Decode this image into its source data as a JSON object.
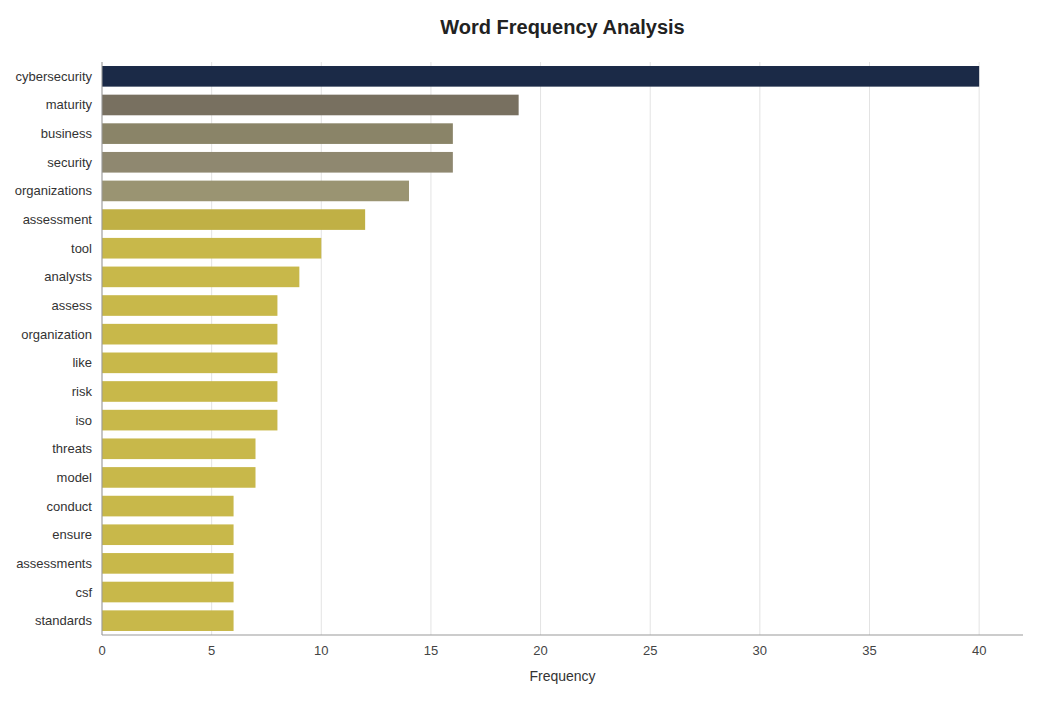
{
  "chart_data": {
    "type": "bar",
    "orientation": "horizontal",
    "title": "Word Frequency Analysis",
    "xlabel": "Frequency",
    "categories": [
      "standards",
      "csf",
      "assessments",
      "ensure",
      "conduct",
      "model",
      "threats",
      "iso",
      "risk",
      "like",
      "organization",
      "assess",
      "analysts",
      "tool",
      "assessment",
      "organizations",
      "security",
      "business",
      "maturity",
      "cybersecurity"
    ],
    "values": [
      6,
      6,
      6,
      6,
      6,
      7,
      7,
      8,
      8,
      8,
      8,
      8,
      9,
      10,
      12,
      14,
      16,
      16,
      19,
      40
    ],
    "colors": [
      "#c8b84a",
      "#c8b84a",
      "#c8b84a",
      "#c8b84a",
      "#c8b84a",
      "#c8b84a",
      "#c8b84a",
      "#c8b84a",
      "#c8b84a",
      "#c8b84a",
      "#c8b84a",
      "#c8b84a",
      "#c8b84a",
      "#c8b84a",
      "#c0b045",
      "#9a9472",
      "#8f8870",
      "#8a8468",
      "#787060",
      "#1b2a47"
    ],
    "xlim": [
      0,
      42
    ],
    "xticks": [
      0,
      5,
      10,
      15,
      20,
      25,
      30,
      35,
      40
    ],
    "grid": true
  }
}
